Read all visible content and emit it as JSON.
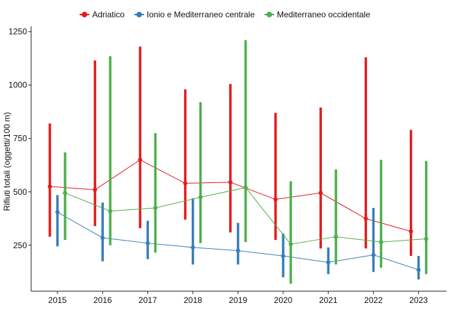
{
  "chart_data": {
    "type": "line",
    "title": "",
    "xlabel": "",
    "ylabel": "Rifiuti totali (oggetti/100 m)",
    "categories": [
      "2015",
      "2016",
      "2017",
      "2018",
      "2019",
      "2020",
      "2021",
      "2022",
      "2023"
    ],
    "yticks": [
      250,
      500,
      750,
      1000,
      1250
    ],
    "ytick_labels": [
      "250",
      "500",
      "750",
      "1000",
      "1250"
    ],
    "ylim": [
      35,
      1275
    ],
    "grid": false,
    "legend_position": "top",
    "series": [
      {
        "name": "Adriatico",
        "color": "#E41A1C",
        "values": [
          525,
          510,
          650,
          540,
          545,
          465,
          495,
          375,
          315
        ],
        "low": [
          290,
          340,
          330,
          370,
          310,
          275,
          235,
          235,
          200
        ],
        "high": [
          820,
          1115,
          1180,
          980,
          1005,
          870,
          895,
          1130,
          790
        ]
      },
      {
        "name": "Ionio e Mediterraneo centrale",
        "color": "#377EB8",
        "values": [
          405,
          285,
          260,
          240,
          225,
          200,
          170,
          205,
          135
        ],
        "low": [
          245,
          175,
          185,
          160,
          160,
          100,
          115,
          125,
          90
        ],
        "high": [
          485,
          450,
          365,
          470,
          355,
          305,
          240,
          425,
          200
        ]
      },
      {
        "name": "Mediterraneo occidentale",
        "color": "#4DAF4A",
        "values": [
          495,
          410,
          425,
          475,
          520,
          255,
          290,
          265,
          280
        ],
        "low": [
          275,
          250,
          215,
          260,
          265,
          70,
          160,
          145,
          115
        ],
        "high": [
          685,
          1135,
          775,
          920,
          1210,
          550,
          605,
          650,
          645
        ]
      }
    ]
  }
}
